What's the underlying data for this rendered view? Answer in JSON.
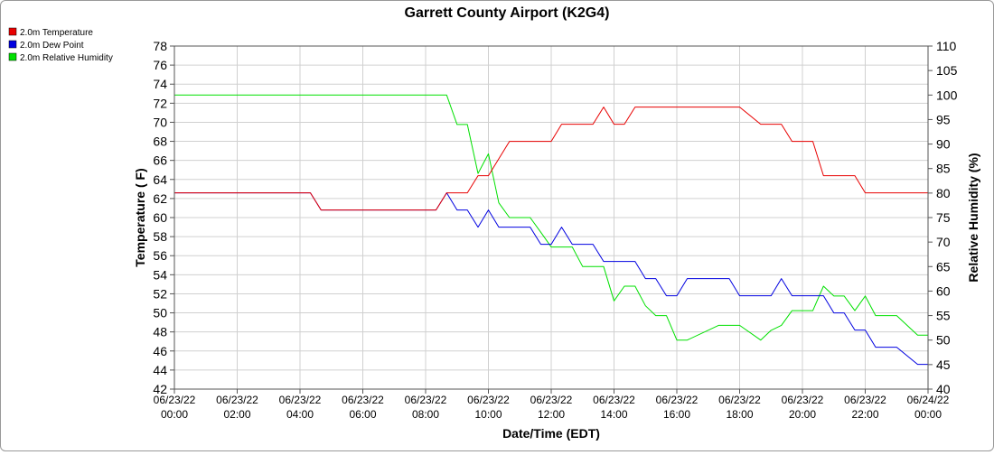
{
  "chart_data": {
    "type": "line",
    "title": "Garrett County Airport (K2G4)",
    "xlabel": "Date/Time (EDT)",
    "ylabel": "Temperature ( F)",
    "y2label": "Relative Humidity (%)",
    "ylim": [
      42,
      78
    ],
    "y_ticks": [
      "42",
      "44",
      "46",
      "48",
      "50",
      "52",
      "54",
      "56",
      "58",
      "60",
      "62",
      "64",
      "66",
      "68",
      "70",
      "72",
      "74",
      "76",
      "78"
    ],
    "y2lim": [
      40,
      110
    ],
    "y2_ticks": [
      "40",
      "45",
      "50",
      "55",
      "60",
      "65",
      "70",
      "75",
      "80",
      "85",
      "90",
      "95",
      "100",
      "105",
      "110"
    ],
    "xlim_hours": [
      0,
      24
    ],
    "x_ticks": [
      {
        "h": 0,
        "date": "06/23/22",
        "time": "00:00"
      },
      {
        "h": 2,
        "date": "06/23/22",
        "time": "02:00"
      },
      {
        "h": 4,
        "date": "06/23/22",
        "time": "04:00"
      },
      {
        "h": 6,
        "date": "06/23/22",
        "time": "06:00"
      },
      {
        "h": 8,
        "date": "06/23/22",
        "time": "08:00"
      },
      {
        "h": 10,
        "date": "06/23/22",
        "time": "10:00"
      },
      {
        "h": 12,
        "date": "06/23/22",
        "time": "12:00"
      },
      {
        "h": 14,
        "date": "06/23/22",
        "time": "14:00"
      },
      {
        "h": 16,
        "date": "06/23/22",
        "time": "16:00"
      },
      {
        "h": 18,
        "date": "06/23/22",
        "time": "18:00"
      },
      {
        "h": 20,
        "date": "06/23/22",
        "time": "20:00"
      },
      {
        "h": 22,
        "date": "06/23/22",
        "time": "22:00"
      },
      {
        "h": 24,
        "date": "06/24/22",
        "time": "00:00"
      }
    ],
    "grid": true,
    "legend_position": "top-left",
    "series": [
      {
        "name": "2.0m Temperature",
        "color": "#e80000",
        "axis": "left",
        "x": [
          0,
          4.33,
          4.67,
          8.33,
          8.67,
          9.33,
          9.67,
          10.0,
          10.67,
          12.0,
          12.33,
          13.33,
          13.67,
          14.0,
          14.33,
          14.67,
          17.67,
          18.0,
          18.67,
          19.33,
          19.67,
          20.33,
          20.67,
          21.67,
          22.0,
          24.0
        ],
        "values": [
          62.6,
          62.6,
          60.8,
          60.8,
          62.6,
          62.6,
          64.4,
          64.4,
          68.0,
          68.0,
          69.8,
          69.8,
          71.6,
          69.8,
          69.8,
          71.6,
          71.6,
          71.6,
          69.8,
          69.8,
          68.0,
          68.0,
          64.4,
          64.4,
          62.6,
          62.6
        ]
      },
      {
        "name": "2.0m Dew Point",
        "color": "#0000e0",
        "axis": "left",
        "x": [
          0,
          4.33,
          4.67,
          8.33,
          8.67,
          9.0,
          9.33,
          9.67,
          10.0,
          10.33,
          10.67,
          11.33,
          11.67,
          12.0,
          12.33,
          12.67,
          13.33,
          13.67,
          14.0,
          14.67,
          15.0,
          15.33,
          15.67,
          16.0,
          16.33,
          17.67,
          18.0,
          19.0,
          19.33,
          19.67,
          20.67,
          21.0,
          21.33,
          21.67,
          22.0,
          22.33,
          23.0,
          23.67,
          24.0
        ],
        "values": [
          62.6,
          62.6,
          60.8,
          60.8,
          62.6,
          60.8,
          60.8,
          59.0,
          60.8,
          59.0,
          59.0,
          59.0,
          57.2,
          57.2,
          59.0,
          57.2,
          57.2,
          55.4,
          55.4,
          55.4,
          53.6,
          53.6,
          51.8,
          51.8,
          53.6,
          53.6,
          51.8,
          51.8,
          53.6,
          51.8,
          51.8,
          50.0,
          50.0,
          48.2,
          48.2,
          46.4,
          46.4,
          44.6,
          44.6
        ]
      },
      {
        "name": "2.0m Relative Humidity",
        "color": "#00e000",
        "axis": "right",
        "x": [
          0,
          8.67,
          9.0,
          9.33,
          9.67,
          10.0,
          10.33,
          10.67,
          11.33,
          11.67,
          12.0,
          12.33,
          12.67,
          13.0,
          13.33,
          13.67,
          14.0,
          14.33,
          14.67,
          15.0,
          15.33,
          15.67,
          16.0,
          16.33,
          17.33,
          17.67,
          18.0,
          18.67,
          19.0,
          19.33,
          19.67,
          20.33,
          20.67,
          21.0,
          21.33,
          21.67,
          22.0,
          22.33,
          23.0,
          23.67,
          24.0
        ],
        "values": [
          100,
          100,
          94,
          94,
          84,
          88,
          78,
          75,
          75,
          72,
          69,
          69,
          69,
          65,
          65,
          65,
          58,
          61,
          61,
          57,
          55,
          55,
          50,
          50,
          53,
          53,
          53,
          50,
          52,
          53,
          56,
          56,
          61,
          59,
          59,
          56,
          59,
          55,
          55,
          51,
          51
        ]
      }
    ]
  }
}
